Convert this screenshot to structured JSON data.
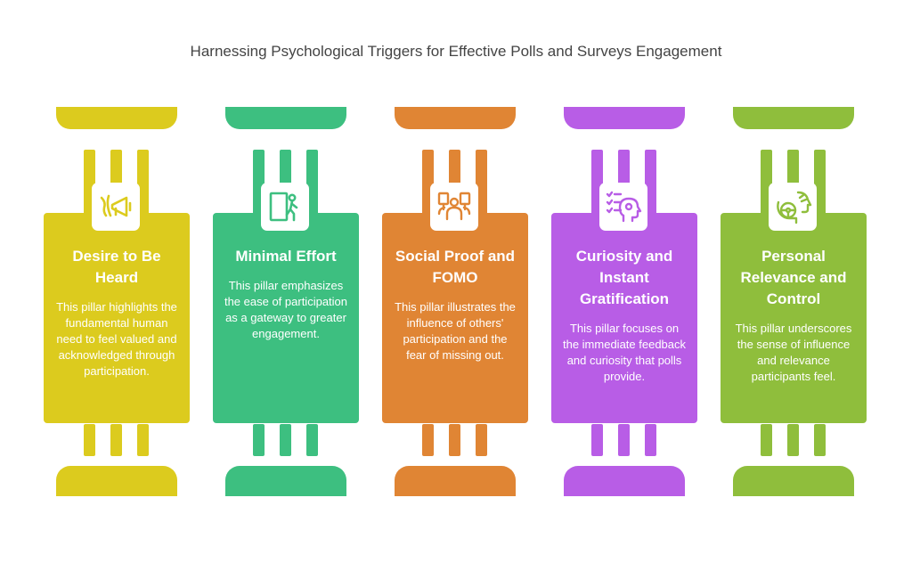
{
  "title": "Harnessing Psychological Triggers for Effective Polls and Surveys Engagement",
  "pillars": [
    {
      "heading": "Desire to Be Heard",
      "description": "This pillar highlights the fundamental human need to feel valued and acknowledged through participation.",
      "icon": "megaphone-icon",
      "color": "#dccb1e"
    },
    {
      "heading": "Minimal Effort",
      "description": "This pillar emphasizes the ease of participation as a gateway to greater engagement.",
      "icon": "door-exit-icon",
      "color": "#3dbf80"
    },
    {
      "heading": "Social Proof and FOMO",
      "description": "This pillar illustrates the influence of others' participation and the fear of missing out.",
      "icon": "group-icon",
      "color": "#e08534"
    },
    {
      "heading": "Curiosity and Instant Gratification",
      "description": "This pillar focuses on the immediate feedback and curiosity that polls provide.",
      "icon": "checklist-head-icon",
      "color": "#b85de6"
    },
    {
      "heading": "Personal Relevance and Control",
      "description": "This pillar underscores the sense of influence and relevance participants feel.",
      "icon": "steering-wheel-icon",
      "color": "#8fbe3c"
    }
  ]
}
